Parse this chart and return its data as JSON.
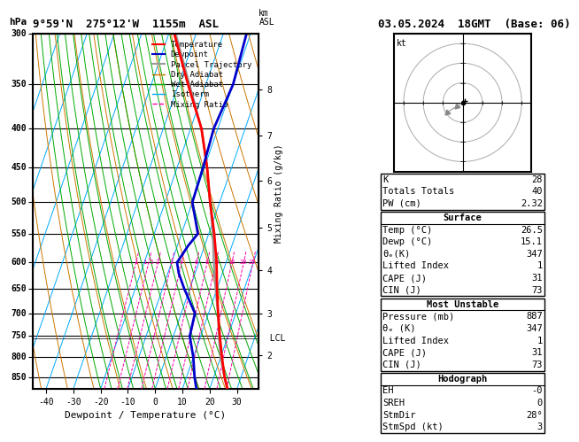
{
  "title_left": "9°59'N  275°12'W  1155m  ASL",
  "title_right": "03.05.2024  18GMT  (Base: 06)",
  "xlabel": "Dewpoint / Temperature (°C)",
  "p_levels": [
    300,
    350,
    400,
    450,
    500,
    550,
    600,
    650,
    700,
    750,
    800,
    850
  ],
  "x_ticks": [
    -40,
    -30,
    -20,
    -10,
    0,
    10,
    20,
    30
  ],
  "t_min": -45,
  "t_max": 38,
  "p_min": 300,
  "p_max": 880,
  "skew_slope": 45.0,
  "temp_color": "#ff0000",
  "dewp_color": "#0000cc",
  "parcel_color": "#999999",
  "dry_adiabat_color": "#cc7700",
  "wet_adiabat_color": "#00aa00",
  "isotherm_color": "#00aaff",
  "mixing_ratio_color": "#ff00aa",
  "bg_color": "#ffffff",
  "lcl_label": "LCL",
  "mixing_ratio_values": [
    1,
    1.5,
    2,
    3,
    4,
    6,
    8,
    10,
    15,
    20,
    25
  ],
  "km_ticks": [
    2,
    3,
    4,
    5,
    6,
    7,
    8
  ],
  "km_pressures": [
    795,
    700,
    615,
    540,
    468,
    408,
    355
  ],
  "lcl_pressure": 755,
  "info_K": 28,
  "info_TT": 40,
  "info_PW": "2.32",
  "surface_temp": "26.5",
  "surface_dewp": "15.1",
  "surface_theta_e": 347,
  "surface_LI": 1,
  "surface_CAPE": 31,
  "surface_CIN": 73,
  "mu_pressure": 887,
  "mu_theta_e": 347,
  "mu_LI": 1,
  "mu_CAPE": 31,
  "mu_CIN": 73,
  "hodo_SREH": 0,
  "hodo_StmDir": 28,
  "hodo_StmSpd": 3,
  "temp_profile_p": [
    880,
    850,
    800,
    750,
    700,
    650,
    600,
    550,
    500,
    450,
    400,
    350,
    300
  ],
  "temp_profile_t": [
    26.5,
    24.0,
    20.5,
    17.0,
    13.5,
    10.0,
    6.5,
    2.0,
    -3.5,
    -9.0,
    -16.0,
    -26.5,
    -38.0
  ],
  "dewp_profile_p": [
    880,
    850,
    800,
    750,
    700,
    650,
    620,
    600,
    570,
    550,
    500,
    450,
    400,
    350,
    300
  ],
  "dewp_profile_t": [
    15.1,
    13.0,
    10.0,
    6.0,
    5.0,
    -2.0,
    -6.0,
    -8.0,
    -6.0,
    -4.0,
    -10.0,
    -10.5,
    -11.5,
    -10.0,
    -11.5
  ],
  "parcel_profile_p": [
    880,
    850,
    800,
    755,
    700,
    650,
    600,
    550,
    500,
    450,
    400,
    350,
    300
  ],
  "parcel_profile_t": [
    26.5,
    24.0,
    20.0,
    17.0,
    13.5,
    9.5,
    5.5,
    1.5,
    -3.5,
    -9.0,
    -16.0,
    -26.0,
    -37.5
  ]
}
